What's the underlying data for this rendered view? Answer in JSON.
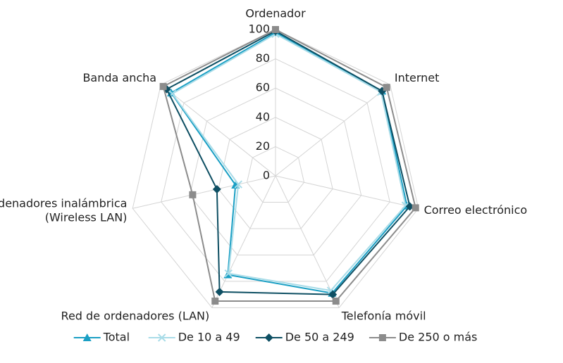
{
  "chart_data": {
    "type": "radar",
    "categories": [
      "Ordenador",
      "Internet",
      "Correo electrónico",
      "Telefonía móvil",
      "Red de ordenadores (LAN)",
      "Red de ordenadores inalámbrica (Wireless LAN)",
      "Banda ancha"
    ],
    "series": [
      {
        "name": "Total",
        "color": "#1a9fc4",
        "marker": "triangle",
        "values": [
          98,
          93,
          92,
          89,
          75,
          28,
          91
        ]
      },
      {
        "name": "De 10 a 49",
        "color": "#a9dce8",
        "marker": "x",
        "values": [
          97,
          92,
          91,
          87,
          74,
          26,
          90
        ]
      },
      {
        "name": "De 50 a 249",
        "color": "#0e4f63",
        "marker": "diamond",
        "values": [
          99,
          93,
          94,
          90,
          88,
          41,
          95
        ]
      },
      {
        "name": "De 250 o más",
        "color": "#8c8c8c",
        "marker": "square",
        "values": [
          100,
          97,
          98,
          95,
          95,
          58,
          98
        ]
      }
    ],
    "ylim": [
      0,
      100
    ],
    "yticks": [
      0,
      20,
      40,
      60,
      80,
      100
    ],
    "grid": true,
    "legend": "bottom"
  }
}
